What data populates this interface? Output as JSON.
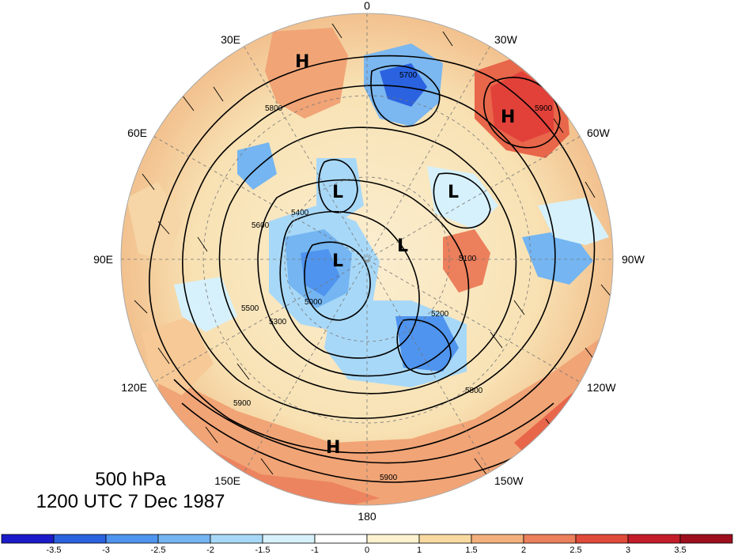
{
  "title": {
    "level": "500 hPa",
    "time": "1200 UTC 7 Dec 1987"
  },
  "longitude_labels": [
    "0",
    "30W",
    "60W",
    "90W",
    "120W",
    "150W",
    "180",
    "150E",
    "120E",
    "90E",
    "60E",
    "30E"
  ],
  "contour_labels": [
    "5700",
    "5800",
    "5900",
    "5600",
    "5500",
    "5400",
    "5300",
    "5200",
    "5100",
    "5000"
  ],
  "pressure_centers": [
    {
      "symbol": "H",
      "region": "north-left"
    },
    {
      "symbol": "H",
      "region": "north-right"
    },
    {
      "symbol": "H",
      "region": "south"
    },
    {
      "symbol": "L",
      "region": "center-left"
    },
    {
      "symbol": "L",
      "region": "center-right"
    },
    {
      "symbol": "L",
      "region": "center"
    },
    {
      "symbol": "L",
      "region": "center-west"
    }
  ],
  "colorbar": {
    "labels": [
      "-3.5",
      "-3",
      "-2.5",
      "-2",
      "-1.5",
      "-1",
      "0",
      "1",
      "1.5",
      "2",
      "2.5",
      "3",
      "3.5"
    ],
    "colors": [
      "#1b1bc9",
      "#2a62e0",
      "#4f94ee",
      "#74b5f2",
      "#a8d8f7",
      "#d6f1fb",
      "#ffffff",
      "#fdf2cf",
      "#f8d9a0",
      "#f3b07c",
      "#ec7f5c",
      "#e04a3a",
      "#c41d2a",
      "#9e0f1d"
    ]
  }
}
